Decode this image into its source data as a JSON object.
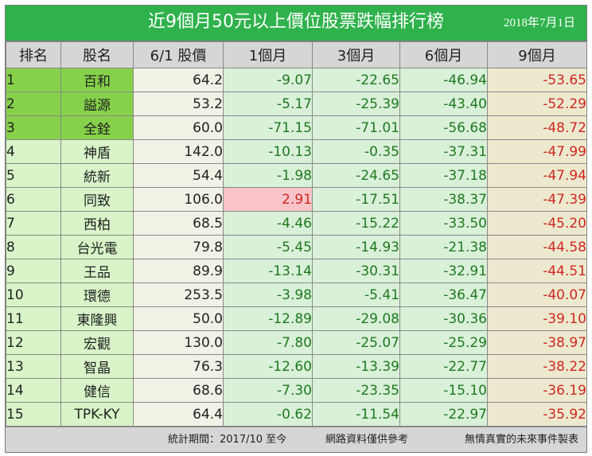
{
  "title": "近9個月50元以上價位股票跌幅排行榜",
  "date": "2018年7月1日",
  "headers": [
    "排名",
    "股名",
    "6/1 股價",
    "1個月",
    "3個月",
    "6個月",
    "9個月"
  ],
  "rows": [
    {
      "rank": "1",
      "name": "百和",
      "price": "64.2",
      "m1": "-9.07",
      "m3": "-22.65",
      "m6": "-46.94",
      "m9": "-53.65"
    },
    {
      "rank": "2",
      "name": "謚源",
      "price": "53.2",
      "m1": "-5.17",
      "m3": "-25.39",
      "m6": "-43.40",
      "m9": "-52.29"
    },
    {
      "rank": "3",
      "name": "全銓",
      "price": "60.0",
      "m1": "-71.15",
      "m3": "-71.01",
      "m6": "-56.68",
      "m9": "-48.72"
    },
    {
      "rank": "4",
      "name": "神盾",
      "price": "142.0",
      "m1": "-10.13",
      "m3": "-0.35",
      "m6": "-37.31",
      "m9": "-47.99"
    },
    {
      "rank": "5",
      "name": "統新",
      "price": "54.4",
      "m1": "-1.98",
      "m3": "-24.65",
      "m6": "-37.18",
      "m9": "-47.94"
    },
    {
      "rank": "6",
      "name": "同致",
      "price": "106.0",
      "m1": "2.91",
      "m3": "-17.51",
      "m6": "-38.37",
      "m9": "-47.39"
    },
    {
      "rank": "7",
      "name": "西柏",
      "price": "68.5",
      "m1": "-4.46",
      "m3": "-15.22",
      "m6": "-33.50",
      "m9": "-45.20"
    },
    {
      "rank": "8",
      "name": "台光電",
      "price": "79.8",
      "m1": "-5.45",
      "m3": "-14.93",
      "m6": "-21.38",
      "m9": "-44.58"
    },
    {
      "rank": "9",
      "name": "王品",
      "price": "89.9",
      "m1": "-13.14",
      "m3": "-30.31",
      "m6": "-32.91",
      "m9": "-44.51"
    },
    {
      "rank": "10",
      "name": "環德",
      "price": "253.5",
      "m1": "-3.98",
      "m3": "-5.41",
      "m6": "-36.47",
      "m9": "-40.07"
    },
    {
      "rank": "11",
      "name": "東隆興",
      "price": "50.0",
      "m1": "-12.89",
      "m3": "-29.08",
      "m6": "-30.36",
      "m9": "-39.10"
    },
    {
      "rank": "12",
      "name": "宏觀",
      "price": "130.0",
      "m1": "-7.80",
      "m3": "-25.07",
      "m6": "-25.29",
      "m9": "-38.97"
    },
    {
      "rank": "13",
      "name": "智晶",
      "price": "76.3",
      "m1": "-12.60",
      "m3": "-13.39",
      "m6": "-22.77",
      "m9": "-38.22"
    },
    {
      "rank": "14",
      "name": "健信",
      "price": "68.6",
      "m1": "-7.30",
      "m3": "-23.35",
      "m6": "-15.10",
      "m9": "-36.19"
    },
    {
      "rank": "15",
      "name": "TPK-KY",
      "price": "64.4",
      "m1": "-0.62",
      "m3": "-11.54",
      "m6": "-22.97",
      "m9": "-35.92"
    }
  ],
  "footer": {
    "period": "統計期間：2017/10 至今",
    "note": "網路資料僅供參考",
    "credit": "無情真實的未來事件製表"
  },
  "colors": {
    "title_bg": "#2fb24c",
    "header_bg": "#d6d6d6",
    "top3_bg": "#86d14a",
    "rank_bg": "#d8f4c8",
    "price_bg": "#f1f1e6",
    "month_bg": "#d9f0d9",
    "month9_bg": "#ece9cf",
    "positive_bg": "#f9c4c9",
    "negative_text": "#1e7a1e",
    "highlight_text": "#d0281f"
  }
}
